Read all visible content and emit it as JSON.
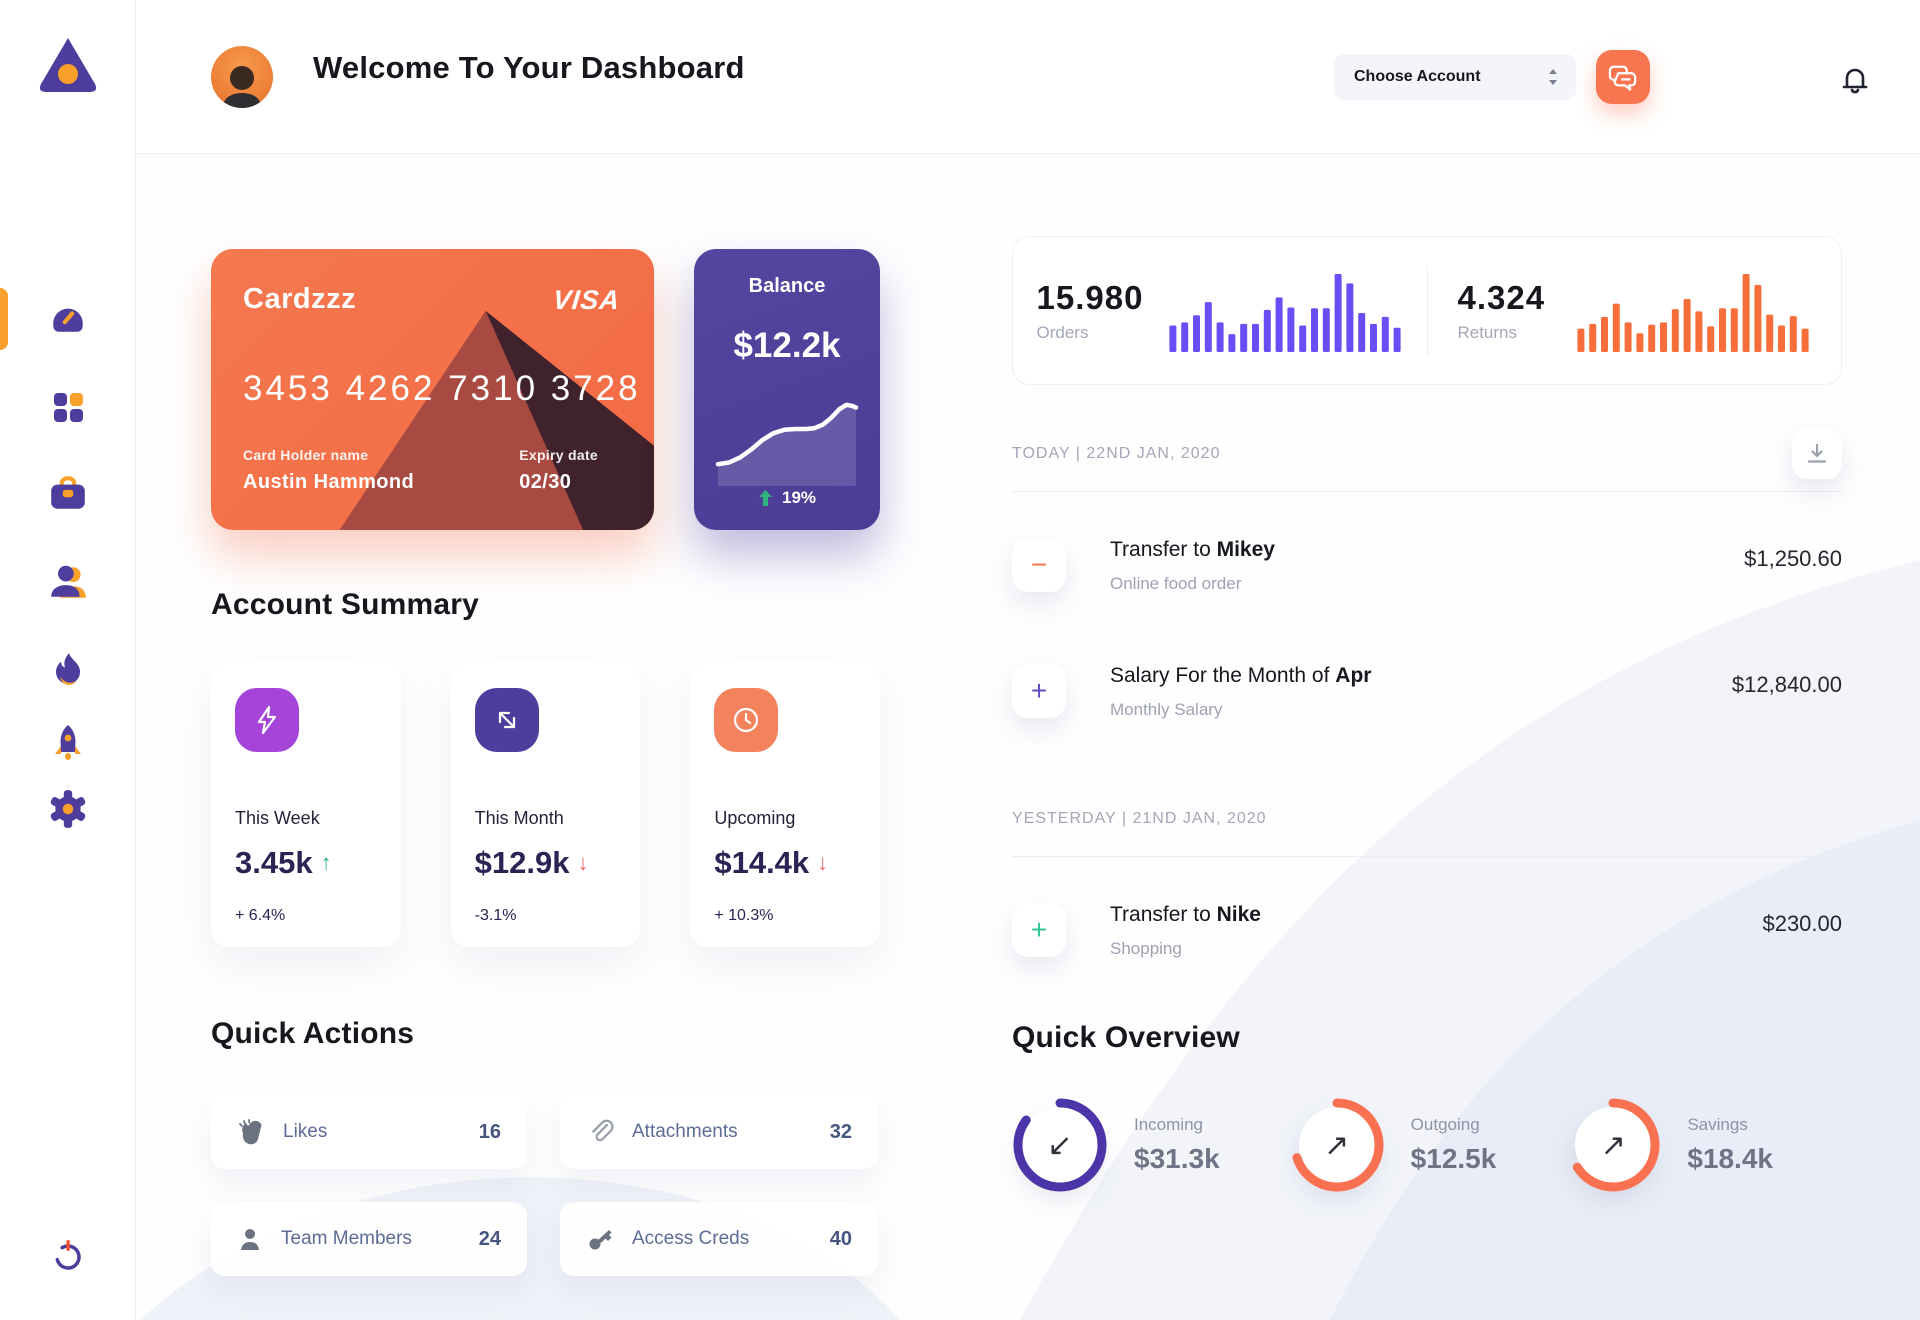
{
  "colors": {
    "accent_orange": "#F8764F",
    "accent_purple": "#4F3D9E",
    "bar_purple": "#6A4DF5",
    "bar_orange": "#F86E3A",
    "ring_purple": "#4C35A8",
    "ring_orange": "#F97150",
    "green": "#2FB380",
    "red": "#E86B6B",
    "gold": "#F9A02B"
  },
  "sidebar": {
    "items": [
      {
        "name": "dashboard",
        "active": true
      },
      {
        "name": "apps",
        "active": false
      },
      {
        "name": "projects",
        "active": false
      },
      {
        "name": "team",
        "active": false
      },
      {
        "name": "trending",
        "active": false
      },
      {
        "name": "launch",
        "active": false
      },
      {
        "name": "settings",
        "active": false
      }
    ],
    "logout": "power"
  },
  "header": {
    "title": "Welcome To Your Dashboard",
    "account_select": "Choose Account"
  },
  "card": {
    "brand": "Cardzzz",
    "network": "VISA",
    "number": "3453 4262 7310 3728",
    "holder_label": "Card Holder name",
    "holder": "Austin Hammond",
    "expiry_label": "Expiry date",
    "expiry": "02/30"
  },
  "balance": {
    "label": "Balance",
    "value": "$12.2k",
    "change": "19%"
  },
  "account_summary": {
    "title": "Account Summary",
    "cards": [
      {
        "label": "This Week",
        "value": "3.45k",
        "arrow": "↑",
        "pct": "+ 6.4%"
      },
      {
        "label": "This Month",
        "value": "$12.9k",
        "arrow": "↓",
        "pct": "-3.1%"
      },
      {
        "label": "Upcoming",
        "value": "$14.4k",
        "arrow": "↓",
        "pct": "+ 10.3%"
      }
    ]
  },
  "quick_actions": {
    "title": "Quick Actions",
    "items": [
      {
        "label": "Likes",
        "value": "16"
      },
      {
        "label": "Attachments",
        "value": "32"
      },
      {
        "label": "Team Members",
        "value": "24"
      },
      {
        "label": "Access Creds",
        "value": "40"
      }
    ]
  },
  "stats": {
    "orders": {
      "value": "15.980",
      "label": "Orders"
    },
    "returns": {
      "value": "4.324",
      "label": "Returns"
    }
  },
  "transactions": {
    "sections": [
      {
        "date": "TODAY | 22ND JAN, 2020",
        "rows": [
          {
            "sign": "−",
            "title_prefix": "Transfer to ",
            "title_bold": "Mikey",
            "subtitle": "Online food order",
            "amount": "$1,250.60"
          },
          {
            "sign": "+",
            "title_prefix": "Salary For the Month of ",
            "title_bold": "Apr",
            "subtitle": "Monthly Salary",
            "amount": "$12,840.00"
          }
        ]
      },
      {
        "date": "YESTERDAY | 21ND JAN, 2020",
        "rows": [
          {
            "sign": "+",
            "title_prefix": "Transfer to ",
            "title_bold": "Nike",
            "subtitle": "Shopping",
            "amount": "$230.00"
          }
        ]
      }
    ]
  },
  "quick_overview": {
    "title": "Quick Overview",
    "items": [
      {
        "label": "Incoming",
        "value": "$31.3k",
        "arrow": "↙"
      },
      {
        "label": "Outgoing",
        "value": "$12.5k",
        "arrow": "↗"
      },
      {
        "label": "Savings",
        "value": "$18.4k",
        "arrow": "↗"
      }
    ]
  },
  "chart_data": [
    {
      "id": "orders-bars",
      "type": "bar",
      "title": "Orders mini bar chart",
      "color": "#6A4DF5",
      "values": [
        0.34,
        0.38,
        0.47,
        0.64,
        0.38,
        0.23,
        0.36,
        0.36,
        0.54,
        0.7,
        0.57,
        0.34,
        0.56,
        0.56,
        1.0,
        0.88,
        0.5,
        0.36,
        0.45,
        0.31
      ]
    },
    {
      "id": "returns-bars",
      "type": "bar",
      "title": "Returns mini bar chart",
      "color": "#F86E3A",
      "values": [
        0.3,
        0.36,
        0.45,
        0.62,
        0.38,
        0.24,
        0.35,
        0.38,
        0.55,
        0.68,
        0.52,
        0.33,
        0.56,
        0.56,
        1.0,
        0.86,
        0.48,
        0.34,
        0.46,
        0.3
      ]
    },
    {
      "id": "balance-spark",
      "type": "line",
      "title": "Balance trend",
      "color": "#FFFFFF",
      "points": [
        [
          0,
          16
        ],
        [
          8,
          18
        ],
        [
          16,
          24
        ],
        [
          24,
          33
        ],
        [
          32,
          44
        ],
        [
          40,
          52
        ],
        [
          48,
          56
        ],
        [
          56,
          57
        ],
        [
          64,
          57
        ],
        [
          70,
          58
        ],
        [
          76,
          62
        ],
        [
          82,
          70
        ],
        [
          88,
          80
        ],
        [
          93,
          85
        ],
        [
          97,
          84
        ],
        [
          100,
          82
        ]
      ]
    },
    {
      "id": "ring-incoming",
      "type": "donut",
      "label": "Incoming",
      "value": "$31.3k",
      "percent": 85,
      "color": "#4C35A8"
    },
    {
      "id": "ring-outgoing",
      "type": "donut",
      "label": "Outgoing",
      "value": "$12.5k",
      "percent": 70,
      "color": "#F97150"
    },
    {
      "id": "ring-savings",
      "type": "donut",
      "label": "Savings",
      "value": "$18.4k",
      "percent": 66,
      "color": "#F97150"
    }
  ]
}
